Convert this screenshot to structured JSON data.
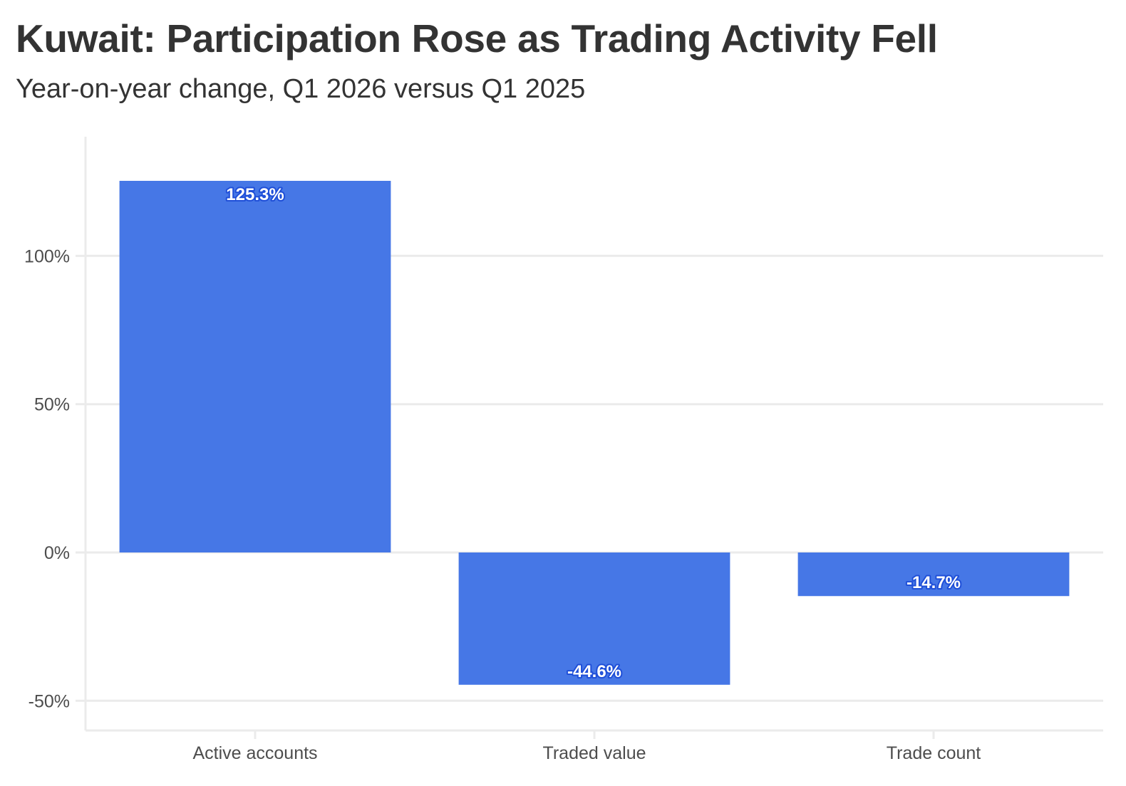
{
  "chart_data": {
    "type": "bar",
    "title": "Kuwait: Participation Rose as Trading Activity Fell",
    "subtitle": "Year-on-year change, Q1 2026 versus Q1 2025",
    "xlabel": "",
    "ylabel": "",
    "categories": [
      "Active accounts",
      "Traded value",
      "Trade count"
    ],
    "values": [
      125.3,
      -44.6,
      -14.7
    ],
    "data_labels": [
      "125.3%",
      "-44.6%",
      "-14.7%"
    ],
    "y_ticks": [
      -50,
      0,
      50,
      100
    ],
    "y_tick_labels": [
      "-50%",
      "0%",
      "50%",
      "100%"
    ],
    "ylim": [
      -60,
      140
    ],
    "grid": true,
    "legend": "none",
    "colors": {
      "bar": "#4677e6",
      "label_outline": "#1f4fd8",
      "grid": "#ebebeb",
      "axis": "#ebebeb",
      "text": "#333333",
      "tick_text": "#4d4d4d"
    }
  }
}
